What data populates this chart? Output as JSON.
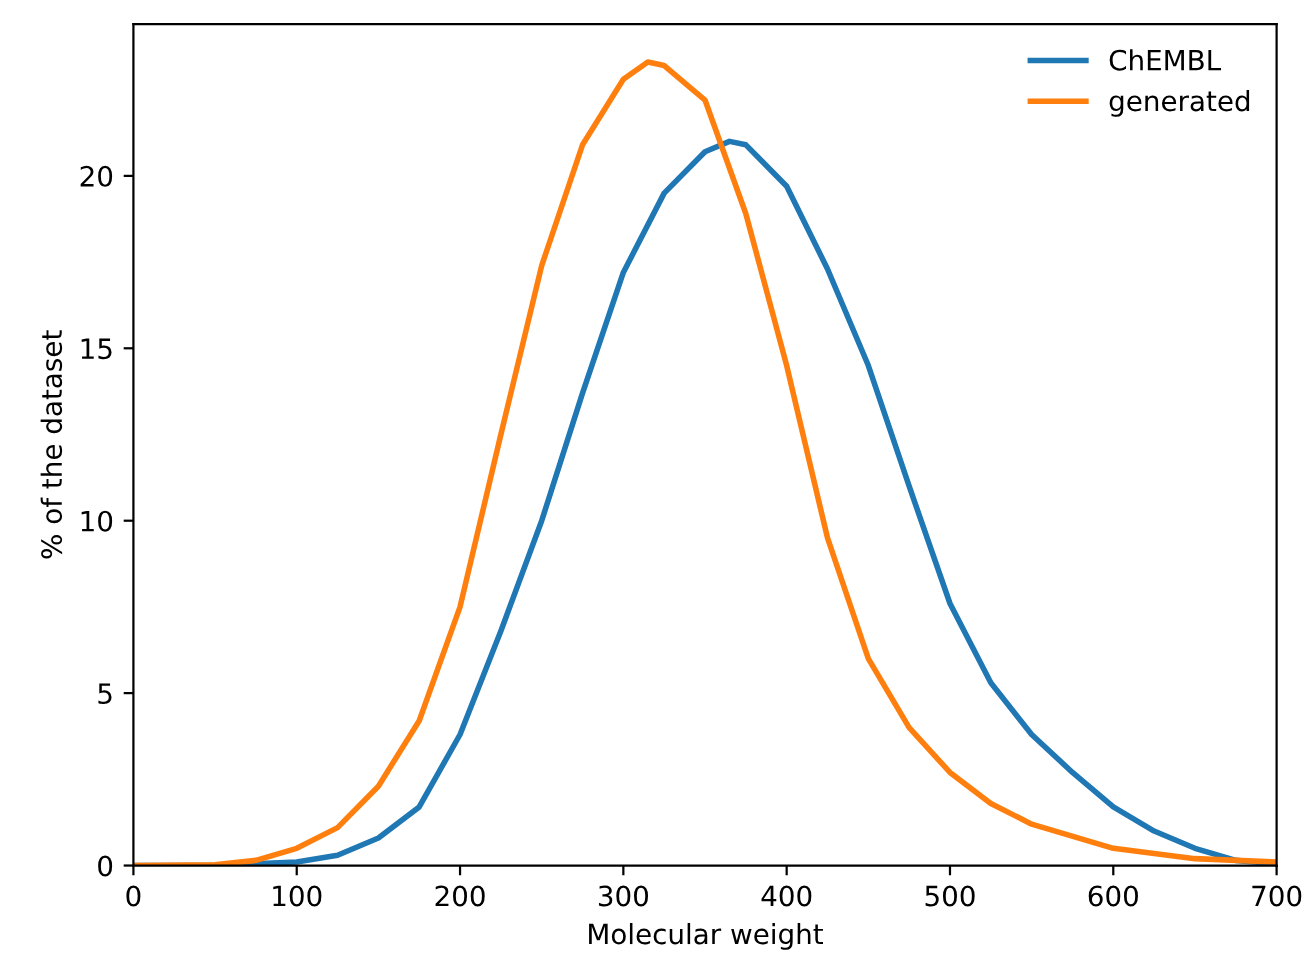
{
  "chart_data": {
    "type": "line",
    "xlabel": "Molecular weight",
    "ylabel": "% of the dataset",
    "xlim": [
      0,
      700
    ],
    "xticks": [
      0,
      100,
      200,
      300,
      400,
      500,
      600,
      700
    ],
    "ylim": [
      0,
      24.4
    ],
    "yticks": [
      0,
      5,
      10,
      15,
      20
    ],
    "grid": false,
    "legend": "top right",
    "marker": "none",
    "line_style": "solid",
    "series": [
      {
        "name": "ChEMBL",
        "color": "#1f77b4",
        "x": [
          0,
          50,
          100,
          125,
          150,
          175,
          200,
          225,
          250,
          275,
          300,
          325,
          350,
          365,
          375,
          400,
          425,
          450,
          475,
          500,
          525,
          550,
          575,
          600,
          625,
          650,
          675,
          700
        ],
        "values": [
          0,
          0,
          0.1,
          0.3,
          0.8,
          1.7,
          3.8,
          6.8,
          10.0,
          13.7,
          17.2,
          19.5,
          20.7,
          21.0,
          20.9,
          19.7,
          17.3,
          14.5,
          11.0,
          7.6,
          5.3,
          3.8,
          2.7,
          1.7,
          1.0,
          0.5,
          0.15,
          0.05
        ]
      },
      {
        "name": "generated",
        "color": "#ff7f0e",
        "x": [
          0,
          50,
          75,
          100,
          125,
          150,
          175,
          200,
          225,
          250,
          275,
          300,
          315,
          325,
          350,
          375,
          400,
          425,
          450,
          475,
          500,
          525,
          550,
          600,
          650,
          700
        ],
        "values": [
          0,
          0.02,
          0.15,
          0.5,
          1.1,
          2.3,
          4.2,
          7.5,
          12.5,
          17.4,
          20.9,
          22.8,
          23.3,
          23.2,
          22.2,
          18.9,
          14.5,
          9.5,
          6.0,
          4.0,
          2.7,
          1.8,
          1.2,
          0.5,
          0.2,
          0.1
        ]
      }
    ]
  }
}
